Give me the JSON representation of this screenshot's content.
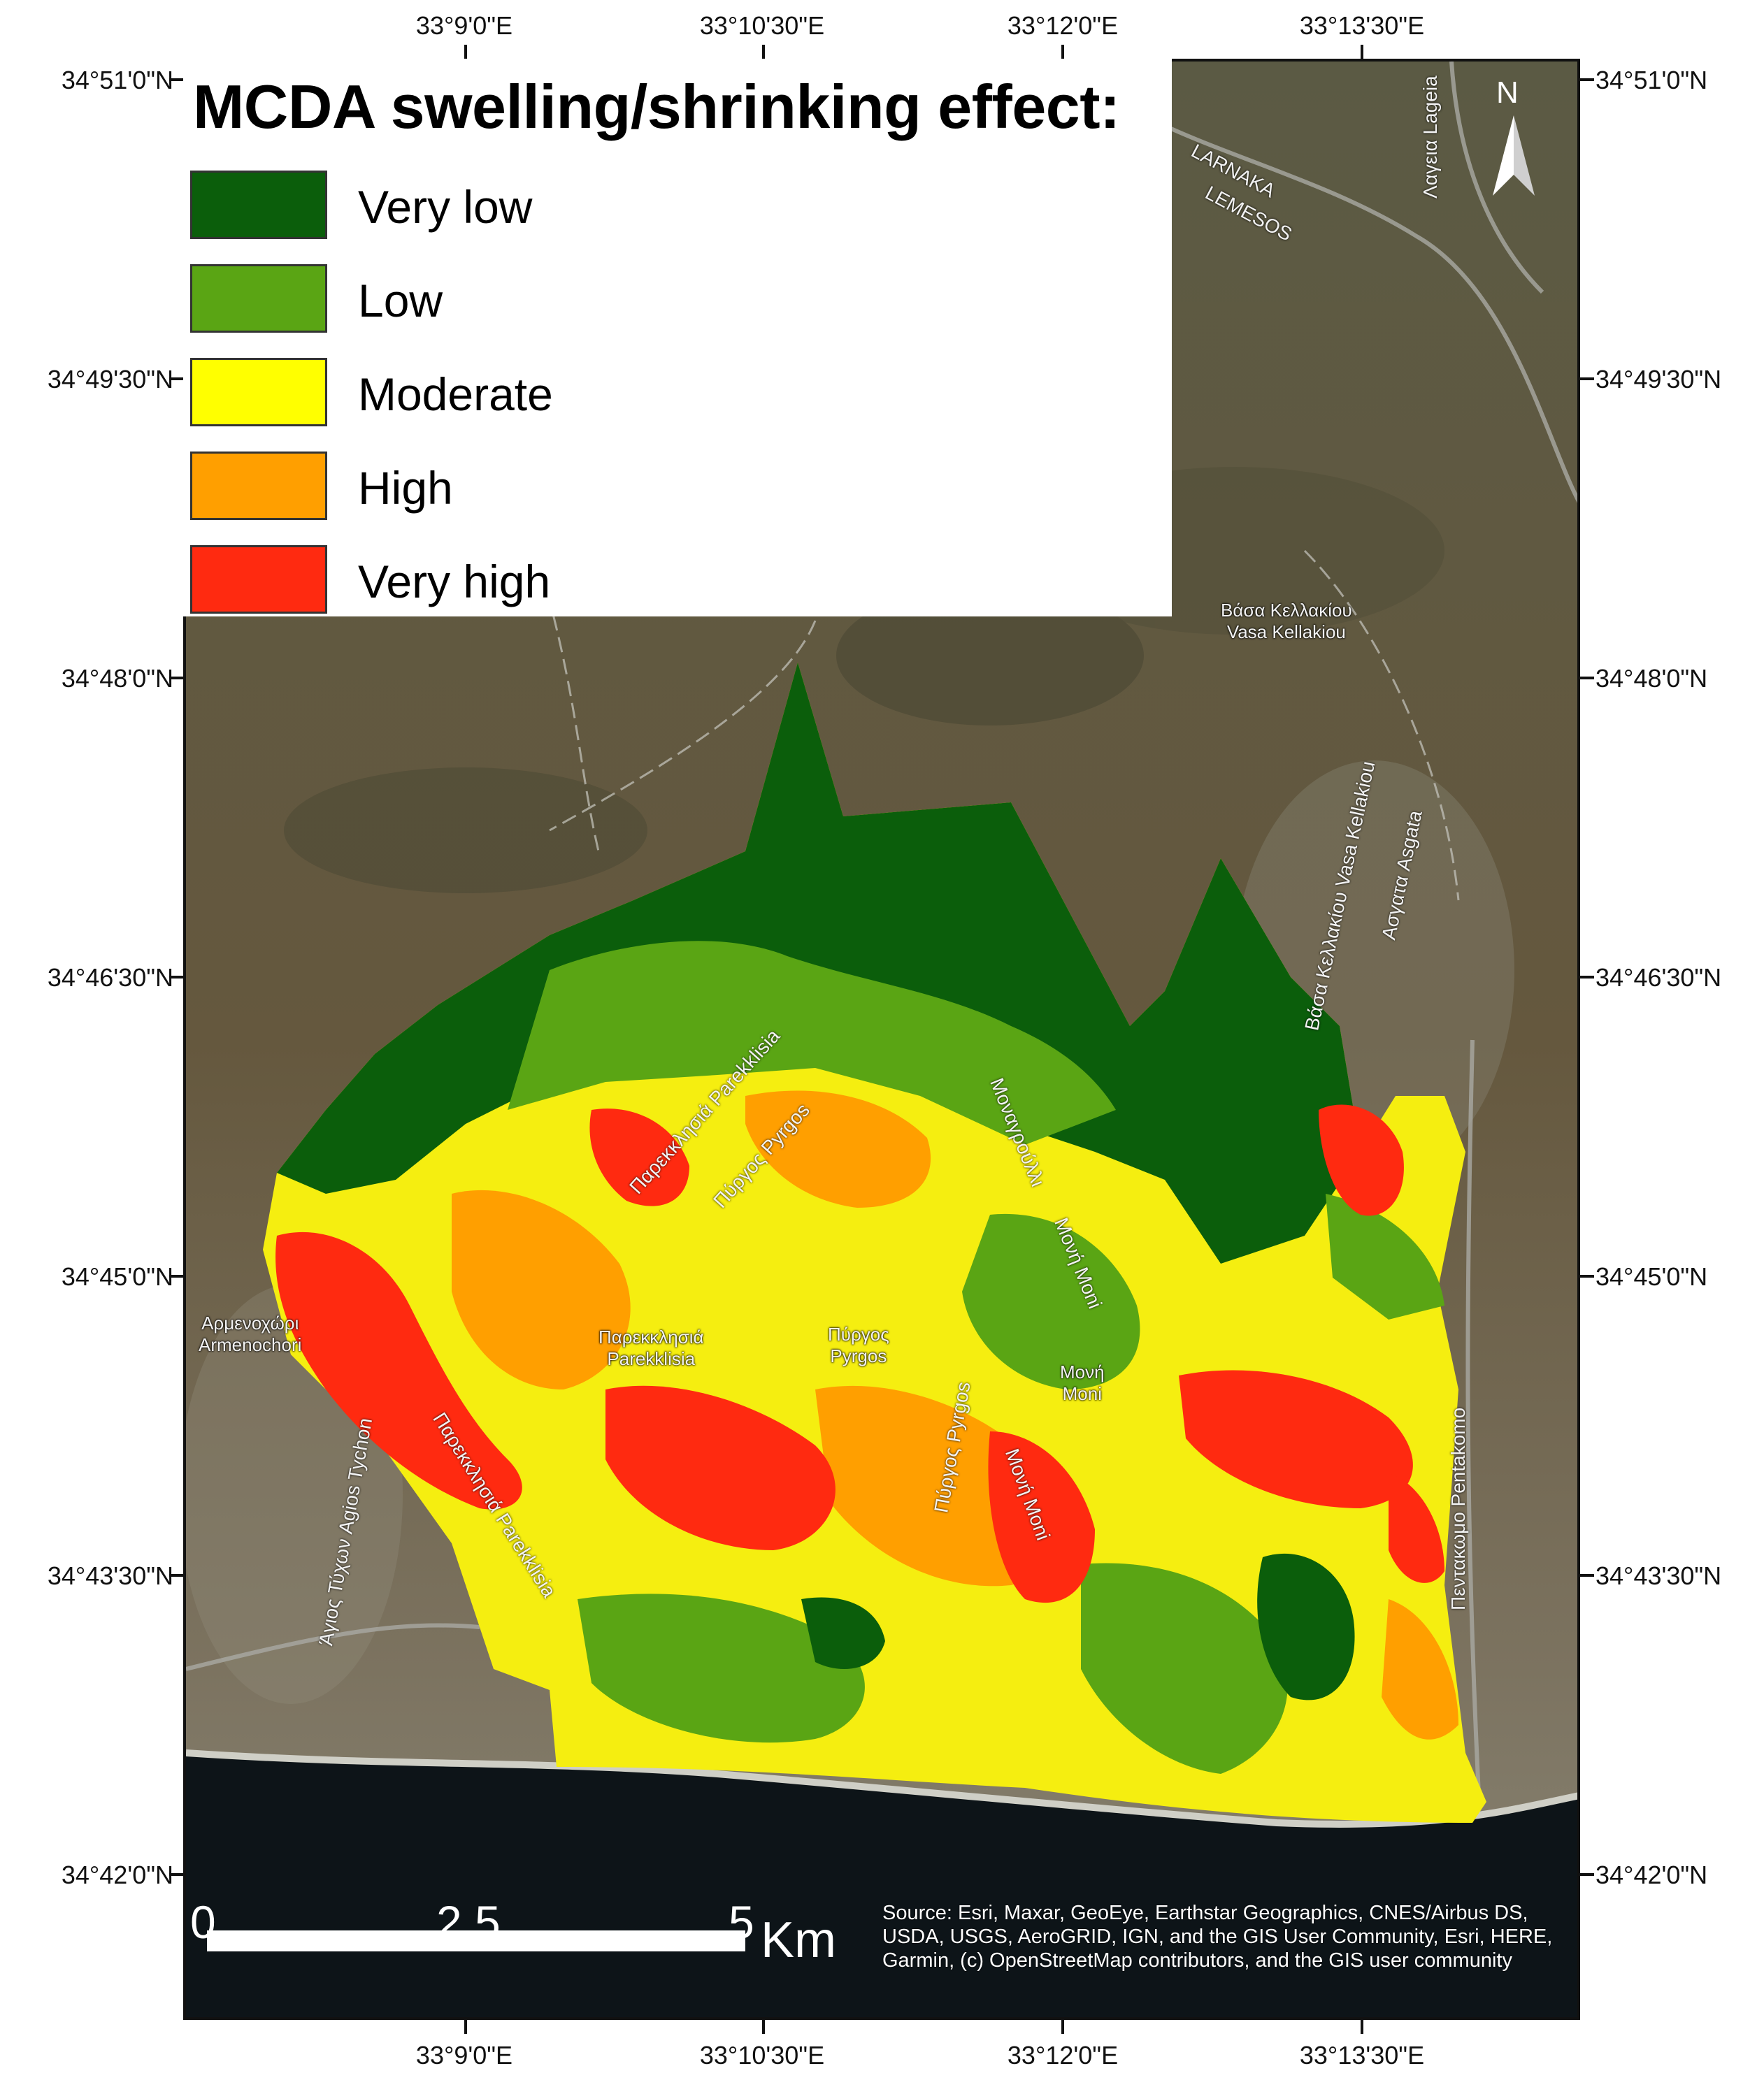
{
  "legend": {
    "title": "MCDA swelling/shrinking effect:",
    "items": [
      {
        "label": "Very low",
        "color": "#0b5e0b"
      },
      {
        "label": "Low",
        "color": "#5aa514"
      },
      {
        "label": "Moderate",
        "color": "#ffff00"
      },
      {
        "label": "High",
        "color": "#ff9f00"
      },
      {
        "label": "Very high",
        "color": "#ff2a10"
      }
    ]
  },
  "graticule": {
    "lon_labels": [
      "33°9'0\"E",
      "33°10'30\"E",
      "33°12'0\"E",
      "33°13'30\"E"
    ],
    "lat_labels": [
      "34°51'0\"N",
      "34°49'30\"N",
      "34°48'0\"N",
      "34°46'30\"N",
      "34°45'0\"N",
      "34°43'30\"N",
      "34°42'0\"N"
    ]
  },
  "north_arrow": {
    "label": "N"
  },
  "scale_bar": {
    "ticks": [
      "0",
      "2.5",
      "5"
    ],
    "unit": "Km"
  },
  "attribution": "Source: Esri, Maxar, GeoEye, Earthstar Geographics, CNES/Airbus DS, USDA, USGS, AeroGRID, IGN, and the GIS User Community, Esri, HERE, Garmin, (c) OpenStreetMap contributors, and the GIS user community",
  "places": [
    {
      "greek": "Βάσα Κελλακίου",
      "latin": "Vasa Kellakiou"
    },
    {
      "greek": "Αρμενοχώρι",
      "latin": "Armenochori"
    },
    {
      "greek": "Παρεκκλησιά",
      "latin": "Parekklisia"
    },
    {
      "greek": "Πύργος",
      "latin": "Pyrgos"
    },
    {
      "greek": "Μονή",
      "latin": "Moni"
    }
  ],
  "roads": [
    "Παρεκκλησιά Parekklisia",
    "Πύργος Pyrgos",
    "Μοναγρούλλι",
    "Μονή Moni",
    "Πύργος Pyrgos",
    "Μονή Moni",
    "Βάσα Κελλακίου Vasa Kellakiou",
    "Ασγατα Asgata",
    "Λαγεια Lageia",
    "Άγιος Τύχων Agios Tychon",
    "Παρεκκλησιά Parekklisia",
    "Πεντακωμο Pentakomo",
    "LARNAKA",
    "LEMESOS"
  ]
}
